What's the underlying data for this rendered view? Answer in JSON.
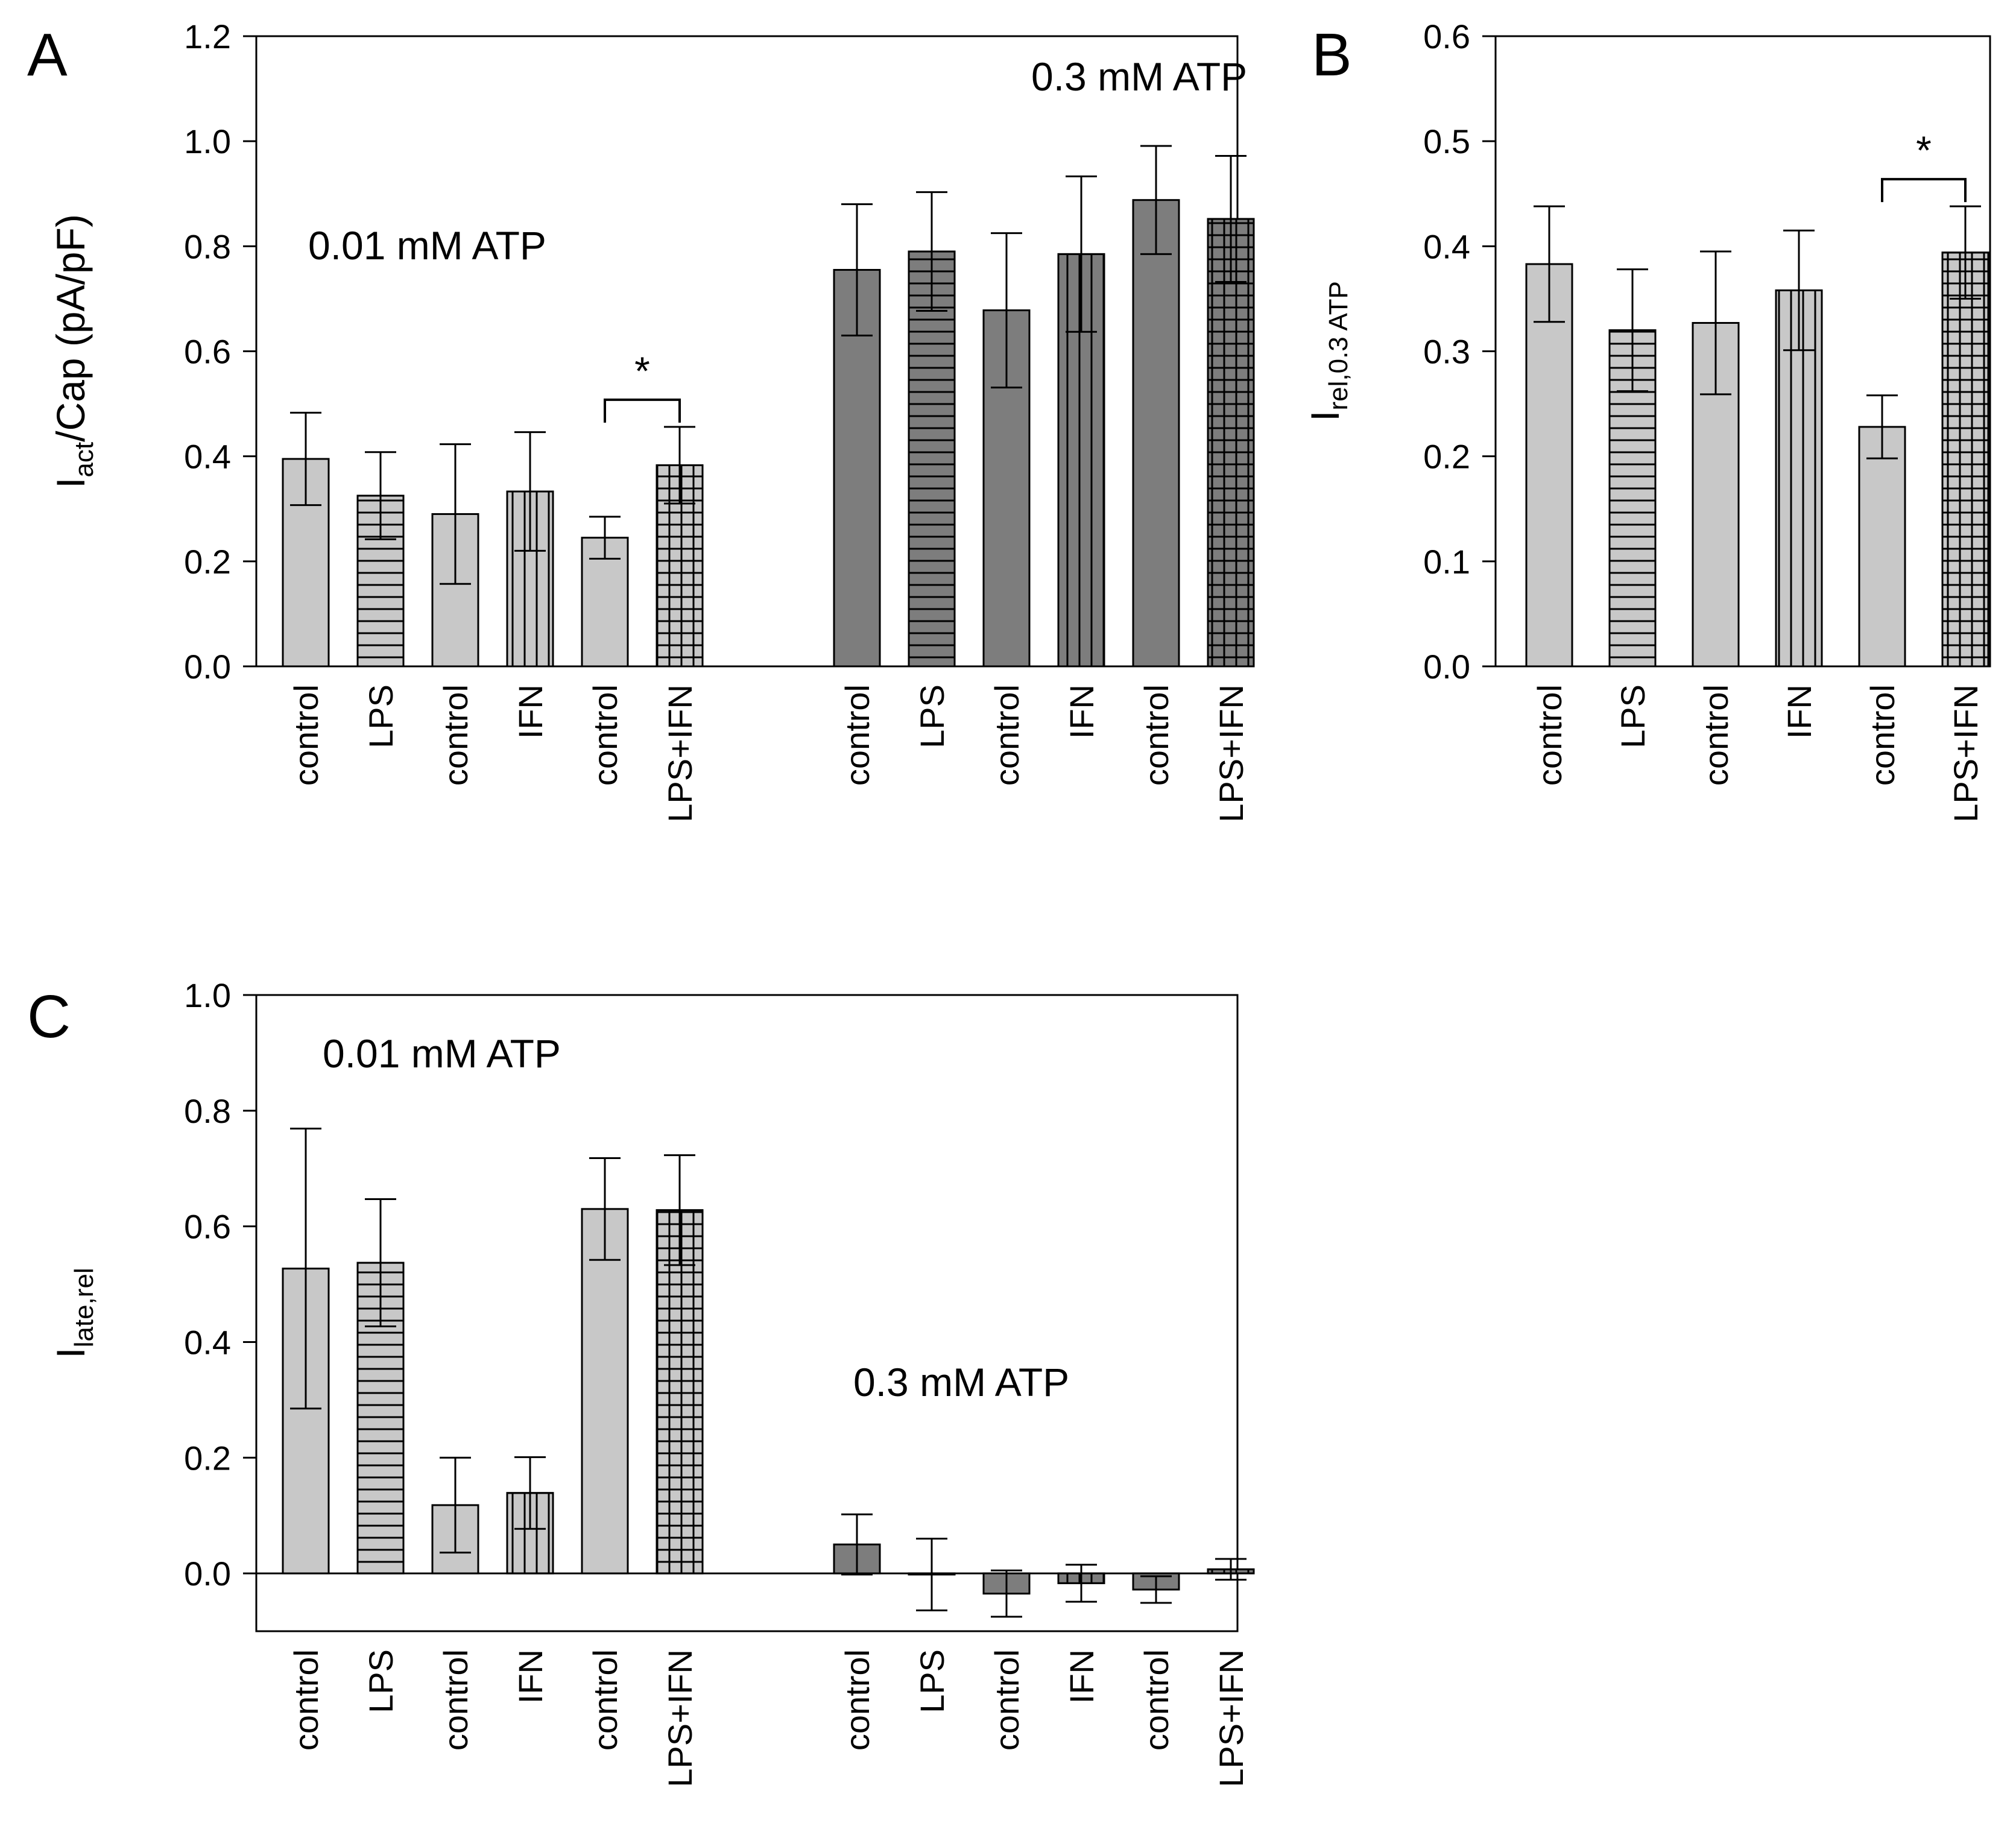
{
  "chart_data": [
    {
      "panel": "A",
      "type": "bar",
      "ylabel": {
        "main": "I",
        "sub": "act",
        "rest": "/Cap (pA/pF)"
      },
      "ylim": [
        0,
        1.2
      ],
      "yticks": [
        0.0,
        0.2,
        0.4,
        0.6,
        0.8,
        1.0,
        1.2
      ],
      "tick_decimals": 1,
      "annotations": [
        "0.01 mM ATP",
        "0.3 mM ATP"
      ],
      "significance": {
        "label": "*",
        "between": [
          4,
          5
        ]
      },
      "groups": [
        {
          "label": "0.01 mM ATP",
          "categories": [
            "control",
            "LPS",
            "control",
            "IFN",
            "control",
            "LPS+IFN"
          ],
          "values": [
            0.395,
            0.325,
            0.29,
            0.333,
            0.245,
            0.383
          ],
          "errors": [
            0.088,
            0.083,
            0.133,
            0.113,
            0.04,
            0.073
          ],
          "fill": "#c8c8c8",
          "patterns": [
            "none",
            "h",
            "none",
            "v",
            "none",
            "grid"
          ]
        },
        {
          "label": "0.3 mM ATP",
          "categories": [
            "control",
            "LPS",
            "control",
            "IFN",
            "control",
            "LPS+IFN"
          ],
          "values": [
            0.755,
            0.79,
            0.678,
            0.785,
            0.888,
            0.852
          ],
          "errors": [
            0.125,
            0.113,
            0.147,
            0.148,
            0.103,
            0.12
          ],
          "fill": "#7d7d7d",
          "patterns": [
            "none",
            "h",
            "none",
            "v",
            "none",
            "grid"
          ]
        }
      ]
    },
    {
      "panel": "B",
      "type": "bar",
      "ylabel": {
        "main": "I",
        "sub": "rel,0.3 ATP",
        "rest": ""
      },
      "ylim": [
        0,
        0.6
      ],
      "yticks": [
        0.0,
        0.1,
        0.2,
        0.3,
        0.4,
        0.5,
        0.6
      ],
      "tick_decimals": 1,
      "annotations": [],
      "significance": {
        "label": "*",
        "between": [
          4,
          5
        ]
      },
      "groups": [
        {
          "categories": [
            "control",
            "LPS",
            "control",
            "IFN",
            "control",
            "LPS+IFN"
          ],
          "values": [
            0.383,
            0.32,
            0.327,
            0.358,
            0.228,
            0.394
          ],
          "errors": [
            0.055,
            0.058,
            0.068,
            0.057,
            0.03,
            0.044
          ],
          "fill": "#c8c8c8",
          "patterns": [
            "none",
            "h",
            "none",
            "v",
            "none",
            "grid"
          ]
        }
      ]
    },
    {
      "panel": "C",
      "type": "bar",
      "ylabel": {
        "main": "I",
        "sub": "late,rel",
        "rest": ""
      },
      "ylim": [
        -0.1,
        1.0
      ],
      "yticks": [
        0.0,
        0.2,
        0.4,
        0.6,
        0.8,
        1.0
      ],
      "tick_decimals": 1,
      "annotations": [
        "0.01 mM ATP",
        "0.3 mM ATP"
      ],
      "zero_line": true,
      "groups": [
        {
          "label": "0.01 mM ATP",
          "categories": [
            "control",
            "LPS",
            "control",
            "IFN",
            "control",
            "LPS+IFN"
          ],
          "values": [
            0.527,
            0.537,
            0.118,
            0.139,
            0.63,
            0.628
          ],
          "errors": [
            0.242,
            0.11,
            0.082,
            0.062,
            0.088,
            0.095
          ],
          "fill": "#c8c8c8",
          "patterns": [
            "none",
            "h",
            "none",
            "v",
            "none",
            "grid"
          ]
        },
        {
          "label": "0.3 mM ATP",
          "categories": [
            "control",
            "LPS",
            "control",
            "IFN",
            "control",
            "LPS+IFN"
          ],
          "values": [
            0.05,
            -0.002,
            -0.035,
            -0.017,
            -0.028,
            0.007
          ],
          "errors": [
            0.052,
            0.062,
            0.04,
            0.032,
            0.023,
            0.018
          ],
          "fill": "#7d7d7d",
          "patterns": [
            "none",
            "h",
            "none",
            "v",
            "none",
            "grid"
          ]
        }
      ]
    }
  ]
}
